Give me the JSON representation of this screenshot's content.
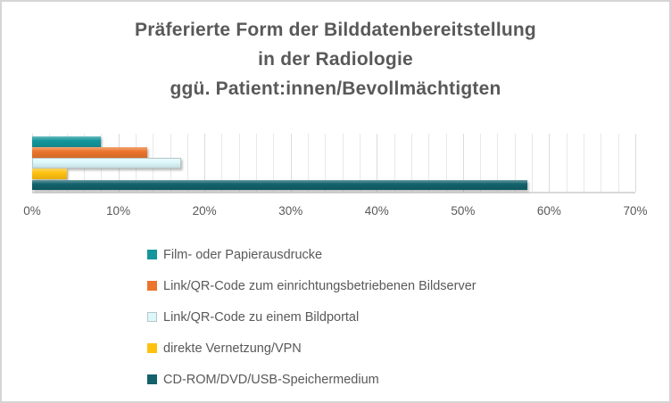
{
  "window": {
    "background": "#FFFFFF",
    "border_color": "#D5D5D5",
    "text_color": "#595959"
  },
  "chart_data": {
    "type": "bar",
    "orientation": "horizontal",
    "title": {
      "lines": [
        "Präferierte Form der Bilddatenbereitstellung",
        "in der Radiologie",
        "ggü. Patient:innen/Bevollmächtigten"
      ],
      "full_text": "Präferierte Form der Bilddatenbereitstellung in der Radiologie ggü. Patient:innen/Bevollmächtigten",
      "color": "#595959"
    },
    "unit": "%",
    "series": [
      {
        "name": "Film- oder Papierausdrucke",
        "value": 8,
        "color": "#13969B"
      },
      {
        "name": "Link/QR-Code zum einrichtungsbetriebenen Bildserver",
        "value": 13.4,
        "color": "#EB752C"
      },
      {
        "name": "Link/QR-Code zu einem Bildportal",
        "value": 17.3,
        "color": "#DDF8FB",
        "border_color": "#B6C6C8"
      },
      {
        "name": "direkte Vernetzung/VPN",
        "value": 4,
        "color": "#FFC110"
      },
      {
        "name": "CD-ROM/DVD/USB-Speichermedium",
        "value": 57.5,
        "color": "#12616B"
      }
    ],
    "x_axis": {
      "min": 0,
      "max": 70,
      "major_step": 10,
      "minor_step": 2,
      "tick_labels": [
        "0%",
        "10%",
        "20%",
        "30%",
        "40%",
        "50%",
        "60%",
        "70%"
      ],
      "label_color": "#595959",
      "axis_line_color": "#D9D9D9"
    },
    "gridlines": {
      "show": true,
      "minor_color": "#E8E8E8",
      "major_color": "#DBDBDB"
    },
    "legend": {
      "position": "bottom-left",
      "text_color": "#595959"
    }
  }
}
